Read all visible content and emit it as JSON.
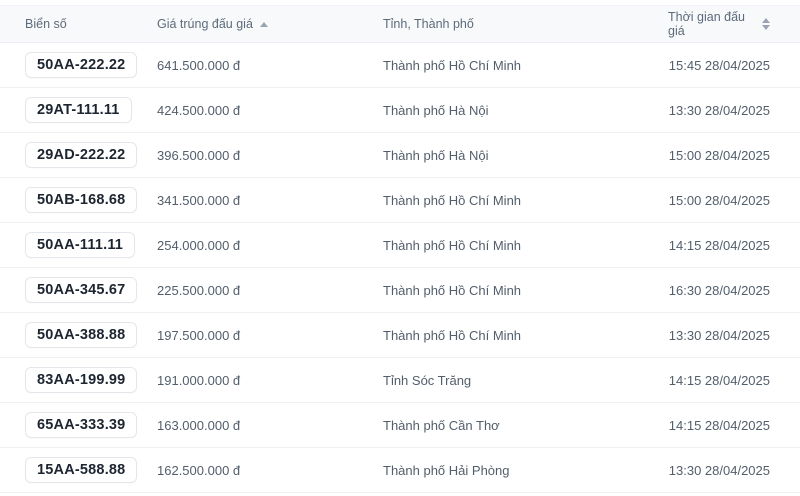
{
  "table": {
    "columns": [
      {
        "key": "plate",
        "label": "Biển số",
        "sortable": false,
        "sort_icon": "none"
      },
      {
        "key": "price",
        "label": "Giá trúng đấu giá",
        "sortable": true,
        "sort_icon": "caret-up"
      },
      {
        "key": "province",
        "label": "Tỉnh, Thành phố",
        "sortable": false,
        "sort_icon": "none"
      },
      {
        "key": "time",
        "label": "Thời gian đấu giá",
        "sortable": true,
        "sort_icon": "caret-up-down"
      }
    ],
    "rows": [
      {
        "plate": "50AA-222.22",
        "price": "641.500.000 đ",
        "province": "Thành phố Hồ Chí Minh",
        "time": "15:45 28/04/2025"
      },
      {
        "plate": "29AT-111.11",
        "price": "424.500.000 đ",
        "province": "Thành phố Hà Nội",
        "time": "13:30 28/04/2025"
      },
      {
        "plate": "29AD-222.22",
        "price": "396.500.000 đ",
        "province": "Thành phố Hà Nội",
        "time": "15:00 28/04/2025"
      },
      {
        "plate": "50AB-168.68",
        "price": "341.500.000 đ",
        "province": "Thành phố Hồ Chí Minh",
        "time": "15:00 28/04/2025"
      },
      {
        "plate": "50AA-111.11",
        "price": "254.000.000 đ",
        "province": "Thành phố Hồ Chí Minh",
        "time": "14:15 28/04/2025"
      },
      {
        "plate": "50AA-345.67",
        "price": "225.500.000 đ",
        "province": "Thành phố Hồ Chí Minh",
        "time": "16:30 28/04/2025"
      },
      {
        "plate": "50AA-388.88",
        "price": "197.500.000 đ",
        "province": "Thành phố Hồ Chí Minh",
        "time": "13:30 28/04/2025"
      },
      {
        "plate": "83AA-199.99",
        "price": "191.000.000 đ",
        "province": "Tỉnh Sóc Trăng",
        "time": "14:15 28/04/2025"
      },
      {
        "plate": "65AA-333.39",
        "price": "163.000.000 đ",
        "province": "Thành phố Cần Thơ",
        "time": "14:15 28/04/2025"
      },
      {
        "plate": "15AA-588.88",
        "price": "162.500.000 đ",
        "province": "Thành phố Hải Phòng",
        "time": "13:30 28/04/2025"
      }
    ]
  },
  "colors": {
    "header_bg": "#f8f9fb",
    "header_text": "#5c6b7a",
    "row_divider": "#eef0f3",
    "cell_text": "#525e6b",
    "plate_text": "#1d2530",
    "badge_border": "#e3e7eb",
    "sort_caret": "#9aa4b2"
  }
}
